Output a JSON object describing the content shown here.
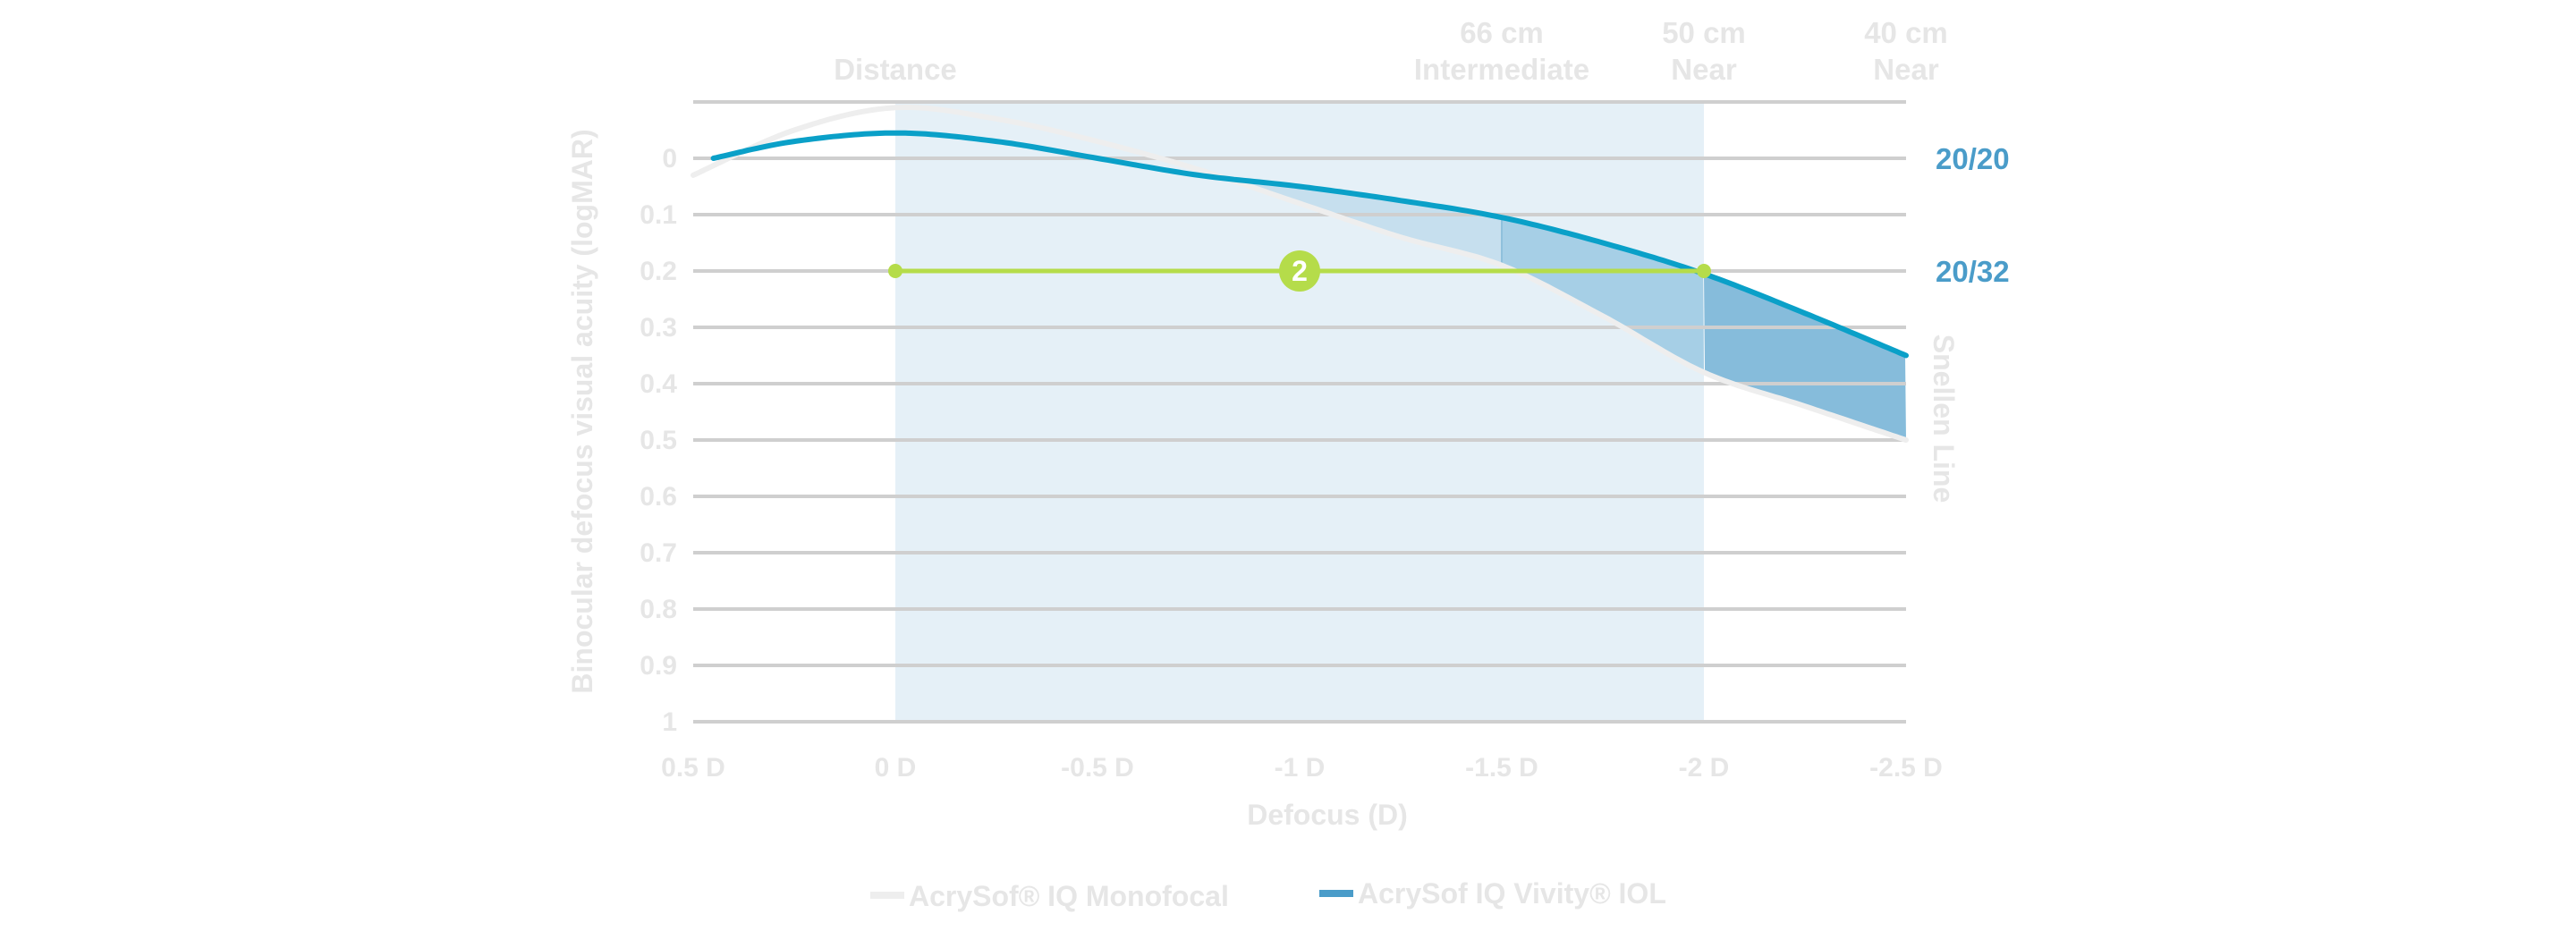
{
  "chart_data": {
    "type": "line",
    "xlabel": "Defocus (D)",
    "ylabel": "Binocular defocus visual acuity (logMAR)",
    "y2label": "Snellen Line",
    "xlim": [
      0.5,
      -2.5
    ],
    "ylim": [
      -0.1,
      1.0
    ],
    "y_inverted": true,
    "grid": true,
    "x_ticks": [
      0.5,
      0,
      -0.5,
      -1,
      -1.5,
      -2,
      -2.5
    ],
    "x_tick_labels": [
      "0.5 D",
      "0 D",
      "-0.5 D",
      "-1 D",
      "-1.5 D",
      "-2 D",
      "-2.5 D"
    ],
    "y_ticks": [
      0,
      0.1,
      0.2,
      0.3,
      0.4,
      0.5,
      0.6,
      0.7,
      0.8,
      0.9,
      1
    ],
    "y_tick_labels": [
      "0",
      "0.1",
      "0.2",
      "0.3",
      "0.4",
      "0.5",
      "0.6",
      "0.7",
      "0.8",
      "0.9",
      "1"
    ],
    "snellen_labels": [
      {
        "y": 0,
        "label": "20/20"
      },
      {
        "y": 0.2,
        "label": "20/32"
      }
    ],
    "distance_labels": [
      {
        "x": 0,
        "lines": [
          "",
          "Distance"
        ]
      },
      {
        "x": -1.5,
        "lines": [
          "66 cm",
          "Intermediate"
        ]
      },
      {
        "x": -2,
        "lines": [
          "50 cm",
          "Near"
        ]
      },
      {
        "x": -2.5,
        "lines": [
          "40 cm",
          "Near"
        ]
      }
    ],
    "shaded_range": [
      0,
      -2
    ],
    "threshold_line": {
      "y": 0.2,
      "x_from": 0,
      "x_to": -2,
      "badge": "2",
      "badge_x": -1
    },
    "legend_position": "bottom",
    "series": [
      {
        "name": "AcrySof® IQ Monofocal",
        "color": "#eeeeee",
        "x": [
          0.5,
          0.25,
          0,
          -0.25,
          -0.5,
          -0.75,
          -1,
          -1.25,
          -1.5,
          -1.75,
          -2,
          -2.25,
          -2.5
        ],
        "y": [
          0.03,
          -0.05,
          -0.09,
          -0.07,
          -0.03,
          0.02,
          0.08,
          0.14,
          0.19,
          0.28,
          0.38,
          0.44,
          0.5
        ]
      },
      {
        "name": "AcrySof IQ Vivity® IOL",
        "color": "#0aa0c8",
        "x": [
          0.45,
          0.25,
          0,
          -0.25,
          -0.5,
          -0.75,
          -1,
          -1.25,
          -1.5,
          -1.75,
          -2,
          -2.25,
          -2.5
        ],
        "y": [
          0.0,
          -0.03,
          -0.045,
          -0.03,
          0.0,
          0.03,
          0.05,
          0.075,
          0.105,
          0.15,
          0.205,
          0.275,
          0.35
        ]
      }
    ],
    "colors": {
      "band": "#e5f0f7",
      "fill_light": "#c6dfee",
      "fill_mid": "#a6cfe6",
      "fill_dark": "#86bcdb",
      "threshold": "#b5dc4a",
      "legend_vivity": "#4a9cc9",
      "grid": "#cfcfcf"
    }
  }
}
